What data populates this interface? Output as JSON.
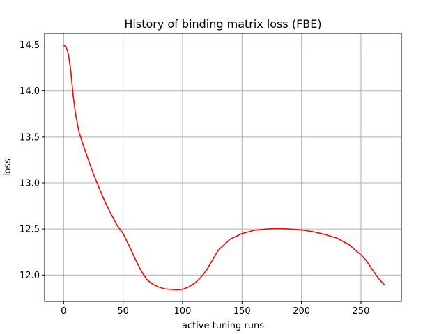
{
  "chart_data": {
    "type": "line",
    "title": "History of binding matrix loss (FBE)",
    "xlabel": "active tuning runs",
    "ylabel": "loss",
    "xlim": [
      -16,
      284
    ],
    "ylim": [
      11.715,
      14.625
    ],
    "xticks": [
      0,
      50,
      100,
      150,
      200,
      250
    ],
    "yticks": [
      12.0,
      12.5,
      13.0,
      13.5,
      14.0,
      14.5
    ],
    "xtick_labels": [
      "0",
      "50",
      "100",
      "150",
      "200",
      "250"
    ],
    "ytick_labels": [
      "12.0",
      "12.5",
      "13.0",
      "13.5",
      "14.0",
      "14.5"
    ],
    "grid": true,
    "legend": "none",
    "colors": {
      "series": "#ff0000",
      "grid": "#b0b0b0",
      "axes": "#000000"
    },
    "series": [
      {
        "x": [
          0,
          2,
          4,
          6,
          8,
          10,
          13,
          16,
          20,
          25,
          30,
          35,
          40,
          45,
          50,
          55,
          60,
          65,
          70,
          75,
          80,
          85,
          90,
          95,
          100,
          105,
          110,
          115,
          120,
          125,
          130,
          140,
          150,
          160,
          170,
          180,
          190,
          200,
          210,
          220,
          230,
          240,
          250,
          255,
          260,
          265,
          270
        ],
        "y": [
          14.5,
          14.48,
          14.4,
          14.22,
          13.95,
          13.75,
          13.55,
          13.43,
          13.28,
          13.1,
          12.94,
          12.79,
          12.66,
          12.54,
          12.45,
          12.32,
          12.18,
          12.05,
          11.95,
          11.9,
          11.87,
          11.85,
          11.845,
          11.84,
          11.845,
          11.87,
          11.91,
          11.97,
          12.05,
          12.16,
          12.27,
          12.39,
          12.45,
          12.485,
          12.5,
          12.505,
          12.5,
          12.49,
          12.47,
          12.44,
          12.4,
          12.33,
          12.22,
          12.15,
          12.05,
          11.96,
          11.89
        ]
      }
    ]
  }
}
